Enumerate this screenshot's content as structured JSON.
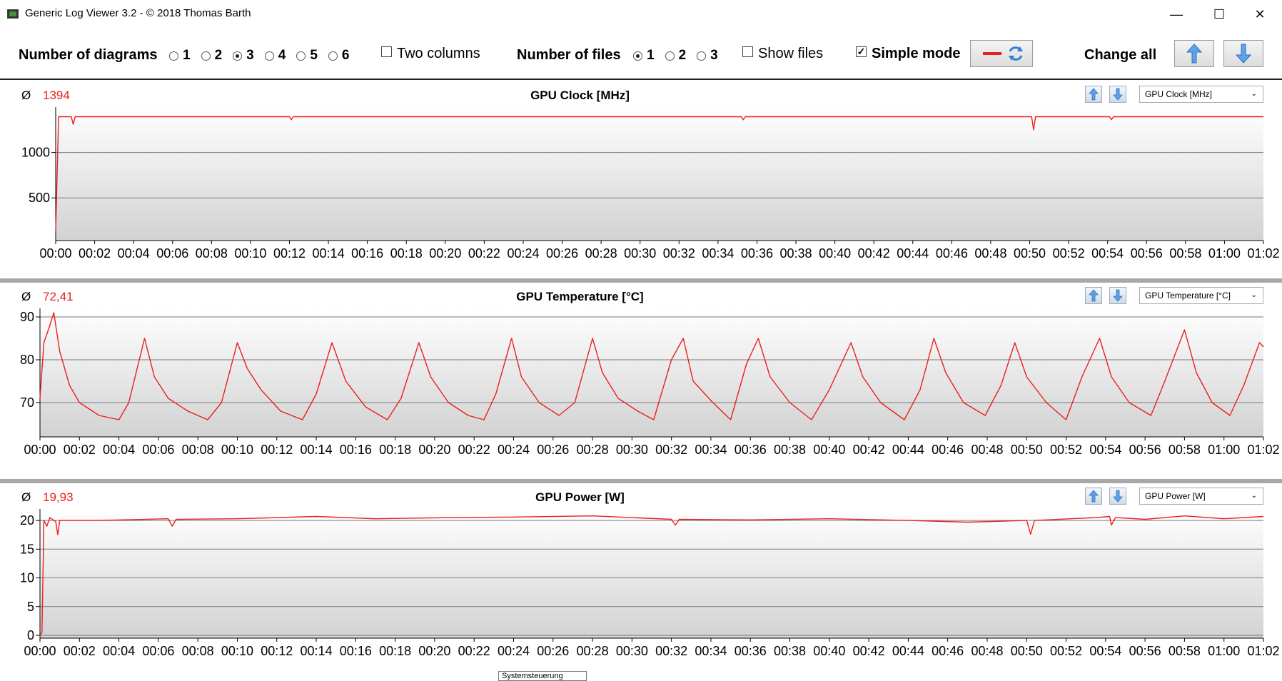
{
  "window": {
    "title": "Generic Log Viewer 3.2 - © 2018 Thomas Barth",
    "minimize_label": "—",
    "maximize_label": "☐",
    "close_label": "✕"
  },
  "toolbar": {
    "num_diagrams_label": "Number of diagrams",
    "diagram_options": [
      "1",
      "2",
      "3",
      "4",
      "5",
      "6"
    ],
    "diagram_selected": "3",
    "two_columns_label": "Two columns",
    "two_columns_checked": false,
    "num_files_label": "Number of files",
    "file_options": [
      "1",
      "2",
      "3"
    ],
    "file_selected": "1",
    "show_files_label": "Show files",
    "show_files_checked": false,
    "simple_mode_label": "Simple mode",
    "simple_mode_checked": true,
    "change_all_label": "Change all",
    "line_color": "#e8201e"
  },
  "icons": {
    "line-style": "red-line-icon",
    "refresh": "refresh-icon",
    "up": "arrow-up-icon",
    "down": "arrow-down-icon"
  },
  "time_ticks": [
    "00:00",
    "00:02",
    "00:04",
    "00:06",
    "00:08",
    "00:10",
    "00:12",
    "00:14",
    "00:16",
    "00:18",
    "00:20",
    "00:22",
    "00:24",
    "00:26",
    "00:28",
    "00:30",
    "00:32",
    "00:34",
    "00:36",
    "00:38",
    "00:40",
    "00:42",
    "00:44",
    "00:46",
    "00:48",
    "00:50",
    "00:52",
    "00:54",
    "00:56",
    "00:58",
    "01:00",
    "01:02"
  ],
  "panels": [
    {
      "avg_symbol": "Ø",
      "avg_value": "1394",
      "title": "GPU Clock [MHz]",
      "select_value": "GPU Clock [MHz]"
    },
    {
      "avg_symbol": "Ø",
      "avg_value": "72,41",
      "title": "GPU Temperature [°C]",
      "select_value": "GPU Temperature [°C]"
    },
    {
      "avg_symbol": "Ø",
      "avg_value": "19,93",
      "title": "GPU Power [W]",
      "select_value": "GPU Power [W]"
    }
  ],
  "tooltip": "Systemsteuerung",
  "chart_data": [
    {
      "type": "line",
      "title": "GPU Clock [MHz]",
      "ylabel": "",
      "xlabel": "",
      "x_unit": "minutes",
      "ylim": [
        30,
        1500
      ],
      "yticks": [
        500,
        1000
      ],
      "grid": true,
      "series": [
        {
          "name": "GPU Clock [MHz]",
          "color": "#e8201e",
          "points": [
            [
              0,
              130
            ],
            [
              0.15,
              1394
            ],
            [
              0.8,
              1394
            ],
            [
              0.9,
              1310
            ],
            [
              1.0,
              1394
            ],
            [
              12.0,
              1394
            ],
            [
              12.1,
              1360
            ],
            [
              12.2,
              1394
            ],
            [
              35.2,
              1394
            ],
            [
              35.3,
              1360
            ],
            [
              35.4,
              1394
            ],
            [
              50.1,
              1394
            ],
            [
              50.2,
              1250
            ],
            [
              50.3,
              1394
            ],
            [
              54.1,
              1394
            ],
            [
              54.2,
              1360
            ],
            [
              54.3,
              1394
            ],
            [
              62.0,
              1394
            ]
          ]
        }
      ]
    },
    {
      "type": "line",
      "title": "GPU Temperature [°C]",
      "ylabel": "",
      "xlabel": "",
      "x_unit": "minutes",
      "ylim": [
        62,
        92
      ],
      "yticks": [
        70,
        80,
        90
      ],
      "grid": true,
      "series": [
        {
          "name": "GPU Temperature [°C]",
          "color": "#e8201e",
          "points": [
            [
              0,
              71
            ],
            [
              0.2,
              84
            ],
            [
              0.5,
              88
            ],
            [
              0.7,
              91
            ],
            [
              1.0,
              82
            ],
            [
              1.5,
              74
            ],
            [
              2.0,
              70
            ],
            [
              3.0,
              67
            ],
            [
              4.0,
              66
            ],
            [
              4.5,
              70
            ],
            [
              5.3,
              85
            ],
            [
              5.8,
              76
            ],
            [
              6.5,
              71
            ],
            [
              7.5,
              68
            ],
            [
              8.5,
              66
            ],
            [
              9.2,
              70
            ],
            [
              10.0,
              84
            ],
            [
              10.5,
              78
            ],
            [
              11.2,
              73
            ],
            [
              12.2,
              68
            ],
            [
              13.3,
              66
            ],
            [
              14.0,
              72
            ],
            [
              14.8,
              84
            ],
            [
              15.5,
              75
            ],
            [
              16.5,
              69
            ],
            [
              17.6,
              66
            ],
            [
              18.3,
              71
            ],
            [
              19.2,
              84
            ],
            [
              19.8,
              76
            ],
            [
              20.7,
              70
            ],
            [
              21.7,
              67
            ],
            [
              22.5,
              66
            ],
            [
              23.1,
              72
            ],
            [
              23.9,
              85
            ],
            [
              24.4,
              76
            ],
            [
              25.3,
              70
            ],
            [
              26.3,
              67
            ],
            [
              27.1,
              70
            ],
            [
              28.0,
              85
            ],
            [
              28.5,
              77
            ],
            [
              29.3,
              71
            ],
            [
              30.3,
              68
            ],
            [
              31.1,
              66
            ],
            [
              32.0,
              80
            ],
            [
              32.6,
              85
            ],
            [
              33.1,
              75
            ],
            [
              34.1,
              70
            ],
            [
              35.0,
              66
            ],
            [
              35.8,
              79
            ],
            [
              36.4,
              85
            ],
            [
              37.0,
              76
            ],
            [
              38.0,
              70
            ],
            [
              39.1,
              66
            ],
            [
              40.0,
              73
            ],
            [
              41.1,
              84
            ],
            [
              41.7,
              76
            ],
            [
              42.6,
              70
            ],
            [
              43.8,
              66
            ],
            [
              44.6,
              73
            ],
            [
              45.3,
              85
            ],
            [
              45.9,
              77
            ],
            [
              46.8,
              70
            ],
            [
              47.9,
              67
            ],
            [
              48.7,
              74
            ],
            [
              49.4,
              84
            ],
            [
              50.0,
              76
            ],
            [
              51.0,
              70
            ],
            [
              52.0,
              66
            ],
            [
              52.8,
              76
            ],
            [
              53.7,
              85
            ],
            [
              54.3,
              76
            ],
            [
              55.2,
              70
            ],
            [
              56.3,
              67
            ],
            [
              57.0,
              75
            ],
            [
              58.0,
              87
            ],
            [
              58.6,
              77
            ],
            [
              59.4,
              70
            ],
            [
              60.3,
              67
            ],
            [
              61.0,
              74
            ],
            [
              61.8,
              84
            ],
            [
              62.0,
              83
            ]
          ]
        }
      ]
    },
    {
      "type": "line",
      "title": "GPU Power [W]",
      "ylabel": "",
      "xlabel": "",
      "x_unit": "minutes",
      "ylim": [
        -0.5,
        22
      ],
      "yticks": [
        0,
        5,
        10,
        15,
        20
      ],
      "grid": true,
      "series": [
        {
          "name": "GPU Power [W]",
          "color": "#e8201e",
          "points": [
            [
              0,
              0
            ],
            [
              0.1,
              0.5
            ],
            [
              0.2,
              20
            ],
            [
              0.35,
              19
            ],
            [
              0.5,
              20.5
            ],
            [
              0.8,
              19.8
            ],
            [
              0.9,
              17.5
            ],
            [
              1.0,
              20
            ],
            [
              3,
              20
            ],
            [
              6.5,
              20.3
            ],
            [
              6.7,
              19
            ],
            [
              6.9,
              20.2
            ],
            [
              10,
              20.3
            ],
            [
              14,
              20.7
            ],
            [
              17,
              20.3
            ],
            [
              21,
              20.5
            ],
            [
              24,
              20.6
            ],
            [
              28,
              20.8
            ],
            [
              32,
              20.2
            ],
            [
              32.2,
              19.2
            ],
            [
              32.4,
              20.2
            ],
            [
              36,
              20.1
            ],
            [
              40,
              20.3
            ],
            [
              44,
              20
            ],
            [
              47,
              19.7
            ],
            [
              49,
              19.9
            ],
            [
              50,
              20
            ],
            [
              50.2,
              17.6
            ],
            [
              50.4,
              20
            ],
            [
              53.5,
              20.5
            ],
            [
              54.2,
              20.7
            ],
            [
              54.3,
              19.2
            ],
            [
              54.5,
              20.5
            ],
            [
              56,
              20.2
            ],
            [
              58,
              20.8
            ],
            [
              60,
              20.3
            ],
            [
              62,
              20.7
            ]
          ]
        }
      ]
    }
  ]
}
